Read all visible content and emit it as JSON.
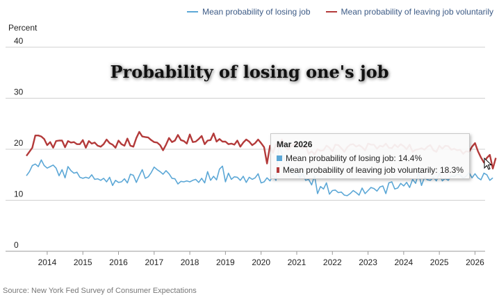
{
  "overlay_title": "Probability of losing one's job",
  "y_unit": "Percent",
  "source": "Source: New York Fed Survey of Consumer Expectations",
  "colors": {
    "blue": "#5ba7d6",
    "red": "#b33a3a"
  },
  "tooltip": {
    "title": "Mar 2026",
    "rows": [
      {
        "label": "Mean probability of losing job: 14.4%"
      },
      {
        "label": "Mean probability of leaving job voluntarily: 18.3%"
      }
    ]
  },
  "chart_data": {
    "type": "line",
    "x_start": "2013-06",
    "x_end": "2026-03",
    "ylim": [
      0,
      40
    ],
    "yticks": [
      0,
      10,
      20,
      30,
      40
    ],
    "xticks": [
      "2014",
      "2015",
      "2016",
      "2017",
      "2018",
      "2019",
      "2020",
      "2021",
      "2022",
      "2023",
      "2024",
      "2025",
      "2026"
    ],
    "grid": "horizontal",
    "legend_position": "top-right",
    "series": [
      {
        "name": "Mean probability of losing job",
        "color": "#5ba7d6",
        "values": [
          14.8,
          15.6,
          16.8,
          17.1,
          16.6,
          17.9,
          16.8,
          16.3,
          16.6,
          16.9,
          16.3,
          14.8,
          16.0,
          14.4,
          16.6,
          15.8,
          15.3,
          15.5,
          14.5,
          14.3,
          14.5,
          14.3,
          15.0,
          14.1,
          14.2,
          13.9,
          14.3,
          13.6,
          14.5,
          12.9,
          13.9,
          13.5,
          13.6,
          14.2,
          13.4,
          15.1,
          14.9,
          13.5,
          14.8,
          16.0,
          14.3,
          14.6,
          15.4,
          16.5,
          16.0,
          15.6,
          15.1,
          15.8,
          15.2,
          14.3,
          14.2,
          13.2,
          13.7,
          13.6,
          13.8,
          13.6,
          13.9,
          14.1,
          13.5,
          14.3,
          13.4,
          15.6,
          13.9,
          14.7,
          14.0,
          16.1,
          16.7,
          13.6,
          15.3,
          14.1,
          14.6,
          14.5,
          13.9,
          14.7,
          13.5,
          14.5,
          14.1,
          14.4,
          15.2,
          13.4,
          13.6,
          14.4,
          13.8,
          14.9,
          13.9,
          20.9,
          19.0,
          17.9,
          17.5,
          16.2,
          15.0,
          15.6,
          14.4,
          15.3,
          13.9,
          14.1,
          13.0,
          14.8,
          11.3,
          12.7,
          12.2,
          13.4,
          11.2,
          11.9,
          12.0,
          11.5,
          11.6,
          11.0,
          10.9,
          11.3,
          11.9,
          11.5,
          11.0,
          12.4,
          11.3,
          11.9,
          12.5,
          12.3,
          11.8,
          12.6,
          12.8,
          11.3,
          13.4,
          13.6,
          12.2,
          12.4,
          13.3,
          12.8,
          13.5,
          12.5,
          14.1,
          13.3,
          15.4,
          12.9,
          14.5,
          14.0,
          13.9,
          14.5,
          13.8,
          15.3,
          13.8,
          14.3,
          13.9,
          14.8,
          14.6,
          15.1,
          15.0,
          14.3,
          14.7,
          15.4,
          14.4,
          15.2,
          14.4,
          14.0,
          15.3,
          15.0,
          13.9,
          14.4
        ]
      },
      {
        "name": "Mean probability of leaving job voluntarily",
        "color": "#b33a3a",
        "values": [
          18.7,
          19.5,
          20.3,
          22.7,
          22.7,
          22.5,
          22.0,
          20.8,
          21.4,
          20.3,
          21.6,
          21.7,
          21.7,
          20.4,
          21.6,
          21.3,
          21.4,
          21.0,
          21.0,
          21.8,
          20.3,
          21.6,
          21.1,
          21.3,
          20.7,
          20.5,
          21.0,
          21.9,
          21.2,
          20.9,
          20.3,
          21.7,
          21.0,
          20.7,
          22.1,
          20.7,
          20.5,
          22.2,
          23.4,
          22.5,
          22.4,
          22.3,
          21.8,
          21.4,
          21.3,
          20.8,
          19.8,
          20.9,
          22.2,
          21.4,
          21.7,
          22.8,
          21.8,
          21.6,
          21.1,
          22.9,
          21.4,
          21.5,
          22.0,
          22.6,
          21.0,
          21.7,
          21.8,
          23.1,
          21.5,
          22.0,
          21.5,
          21.5,
          21.0,
          21.1,
          20.9,
          21.7,
          20.5,
          21.3,
          21.9,
          21.5,
          20.8,
          21.2,
          21.9,
          21.2,
          20.4,
          17.2,
          20.7,
          19.3,
          21.0,
          20.3,
          21.9,
          20.5,
          19.9,
          20.5,
          20.9,
          21.2,
          20.6,
          20.2,
          20.7,
          19.1,
          19.6,
          19.0,
          20.0,
          19.7,
          19.8,
          20.7,
          20.3,
          19.6,
          20.9,
          20.8,
          20.2,
          19.5,
          20.4,
          20.9,
          21.0,
          20.5,
          20.8,
          20.4,
          19.8,
          21.1,
          20.9,
          20.9,
          20.1,
          20.7,
          20.5,
          21.1,
          20.3,
          20.2,
          20.9,
          20.4,
          21.0,
          20.6,
          20.0,
          20.9,
          19.5,
          19.9,
          20.0,
          20.2,
          19.9,
          20.5,
          20.8,
          19.8,
          19.5,
          20.7,
          20.1,
          20.7,
          20.6,
          19.9,
          20.1,
          19.8,
          19.9,
          19.1,
          19.6,
          19.5,
          20.5,
          21.2,
          19.6,
          18.4,
          17.4,
          18.3,
          18.9,
          16.2,
          18.3
        ]
      }
    ]
  }
}
